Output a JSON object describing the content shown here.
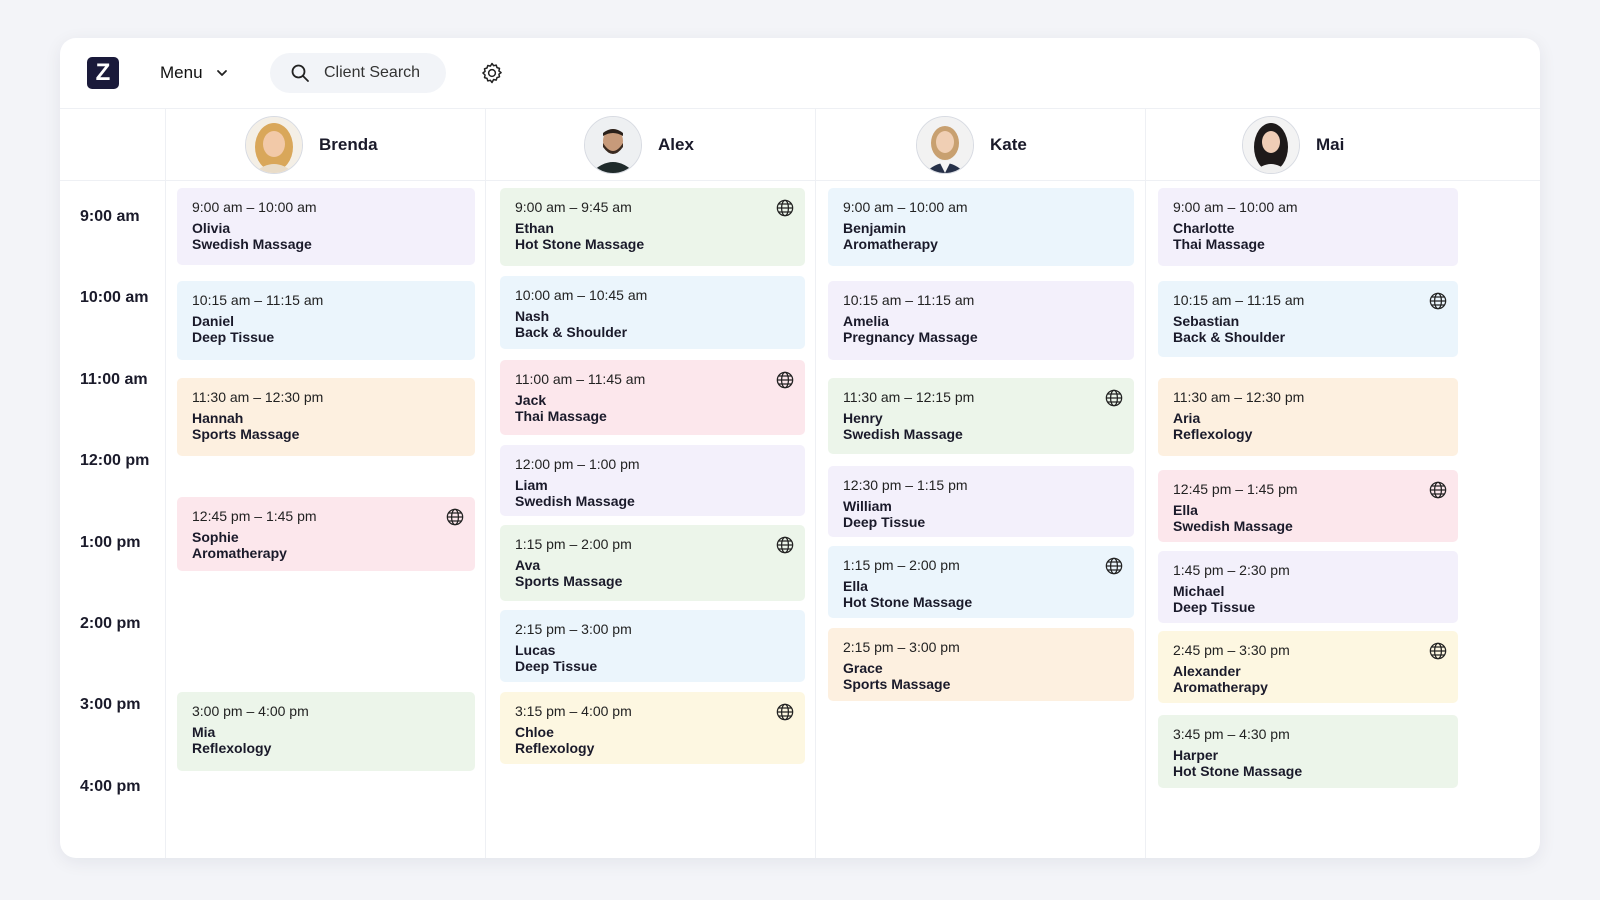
{
  "app": {
    "logo_letter": "Z"
  },
  "topbar": {
    "menu_label": "Menu",
    "search_label": "Client Search"
  },
  "times": [
    "9:00 am",
    "10:00 am",
    "11:00 am",
    "12:00 pm",
    "1:00 pm",
    "2:00 pm",
    "3:00 pm",
    "4:00 pm"
  ],
  "staff": [
    {
      "name": "Brenda",
      "appointments": [
        {
          "time": "9:00 am – 10:00 am",
          "client": "Olivia",
          "service": "Swedish Massage",
          "color": "#f3f0fb",
          "online": false
        },
        {
          "time": "10:15 am – 11:15 am",
          "client": "Daniel",
          "service": "Deep Tissue",
          "color": "#ebf5fc",
          "online": false
        },
        {
          "time": "11:30 am – 12:30 pm",
          "client": "Hannah",
          "service": "Sports Massage",
          "color": "#fdf0e0",
          "online": false
        },
        {
          "time": "12:45 pm – 1:45 pm",
          "client": "Sophie",
          "service": "Aromatherapy",
          "color": "#fce7ec",
          "online": true
        },
        {
          "time": "3:00 pm – 4:00 pm",
          "client": "Mia",
          "service": "Reflexology",
          "color": "#ecf5ea",
          "online": false
        }
      ]
    },
    {
      "name": "Alex",
      "appointments": [
        {
          "time": "9:00 am – 9:45 am",
          "client": "Ethan",
          "service": "Hot Stone Massage",
          "color": "#ecf5ea",
          "online": true
        },
        {
          "time": "10:00 am – 10:45 am",
          "client": "Nash",
          "service": "Back & Shoulder",
          "color": "#ebf5fc",
          "online": false
        },
        {
          "time": "11:00 am – 11:45 am",
          "client": "Jack",
          "service": "Thai Massage",
          "color": "#fce7ec",
          "online": true
        },
        {
          "time": "12:00 pm – 1:00 pm",
          "client": "Liam",
          "service": "Swedish Massage",
          "color": "#f3f0fb",
          "online": false
        },
        {
          "time": "1:15 pm – 2:00 pm",
          "client": "Ava",
          "service": "Sports Massage",
          "color": "#ecf5ea",
          "online": true
        },
        {
          "time": "2:15 pm – 3:00 pm",
          "client": "Lucas",
          "service": "Deep Tissue",
          "color": "#ebf5fc",
          "online": false
        },
        {
          "time": "3:15 pm – 4:00 pm",
          "client": "Chloe",
          "service": "Reflexology",
          "color": "#fdf7e1",
          "online": true
        }
      ]
    },
    {
      "name": "Kate",
      "appointments": [
        {
          "time": "9:00 am – 10:00 am",
          "client": "Benjamin",
          "service": "Aromatherapy",
          "color": "#ebf5fc",
          "online": false
        },
        {
          "time": "10:15 am – 11:15 am",
          "client": "Amelia",
          "service": "Pregnancy Massage",
          "color": "#f3f0fb",
          "online": false
        },
        {
          "time": "11:30 am – 12:15 pm",
          "client": "Henry",
          "service": "Swedish Massage",
          "color": "#ecf5ea",
          "online": true
        },
        {
          "time": "12:30 pm – 1:15 pm",
          "client": "William",
          "service": "Deep Tissue",
          "color": "#f3f0fb",
          "online": false
        },
        {
          "time": "1:15 pm – 2:00 pm",
          "client": "Ella",
          "service": "Hot Stone Massage",
          "color": "#ebf5fc",
          "online": true
        },
        {
          "time": "2:15 pm – 3:00 pm",
          "client": "Grace",
          "service": "Sports Massage",
          "color": "#fdf0e0",
          "online": false
        }
      ]
    },
    {
      "name": "Mai",
      "appointments": [
        {
          "time": "9:00 am – 10:00 am",
          "client": "Charlotte",
          "service": "Thai Massage",
          "color": "#f3f0fb",
          "online": false
        },
        {
          "time": "10:15 am – 11:15 am",
          "client": "Sebastian",
          "service": "Back & Shoulder",
          "color": "#ebf5fc",
          "online": true
        },
        {
          "time": "11:30 am – 12:30 pm",
          "client": "Aria",
          "service": "Reflexology",
          "color": "#fdf0e0",
          "online": false
        },
        {
          "time": "12:45 pm – 1:45 pm",
          "client": "Ella",
          "service": "Swedish Massage",
          "color": "#fce7ec",
          "online": true
        },
        {
          "time": "1:45 pm – 2:30 pm",
          "client": "Michael",
          "service": "Deep Tissue",
          "color": "#f3f0fb",
          "online": false
        },
        {
          "time": "2:45 pm – 3:30 pm",
          "client": "Alexander",
          "service": "Aromatherapy",
          "color": "#fdf7e1",
          "online": true
        },
        {
          "time": "3:45 pm – 4:30 pm",
          "client": "Harper",
          "service": "Hot Stone Massage",
          "color": "#ecf5ea",
          "online": false
        }
      ]
    }
  ]
}
